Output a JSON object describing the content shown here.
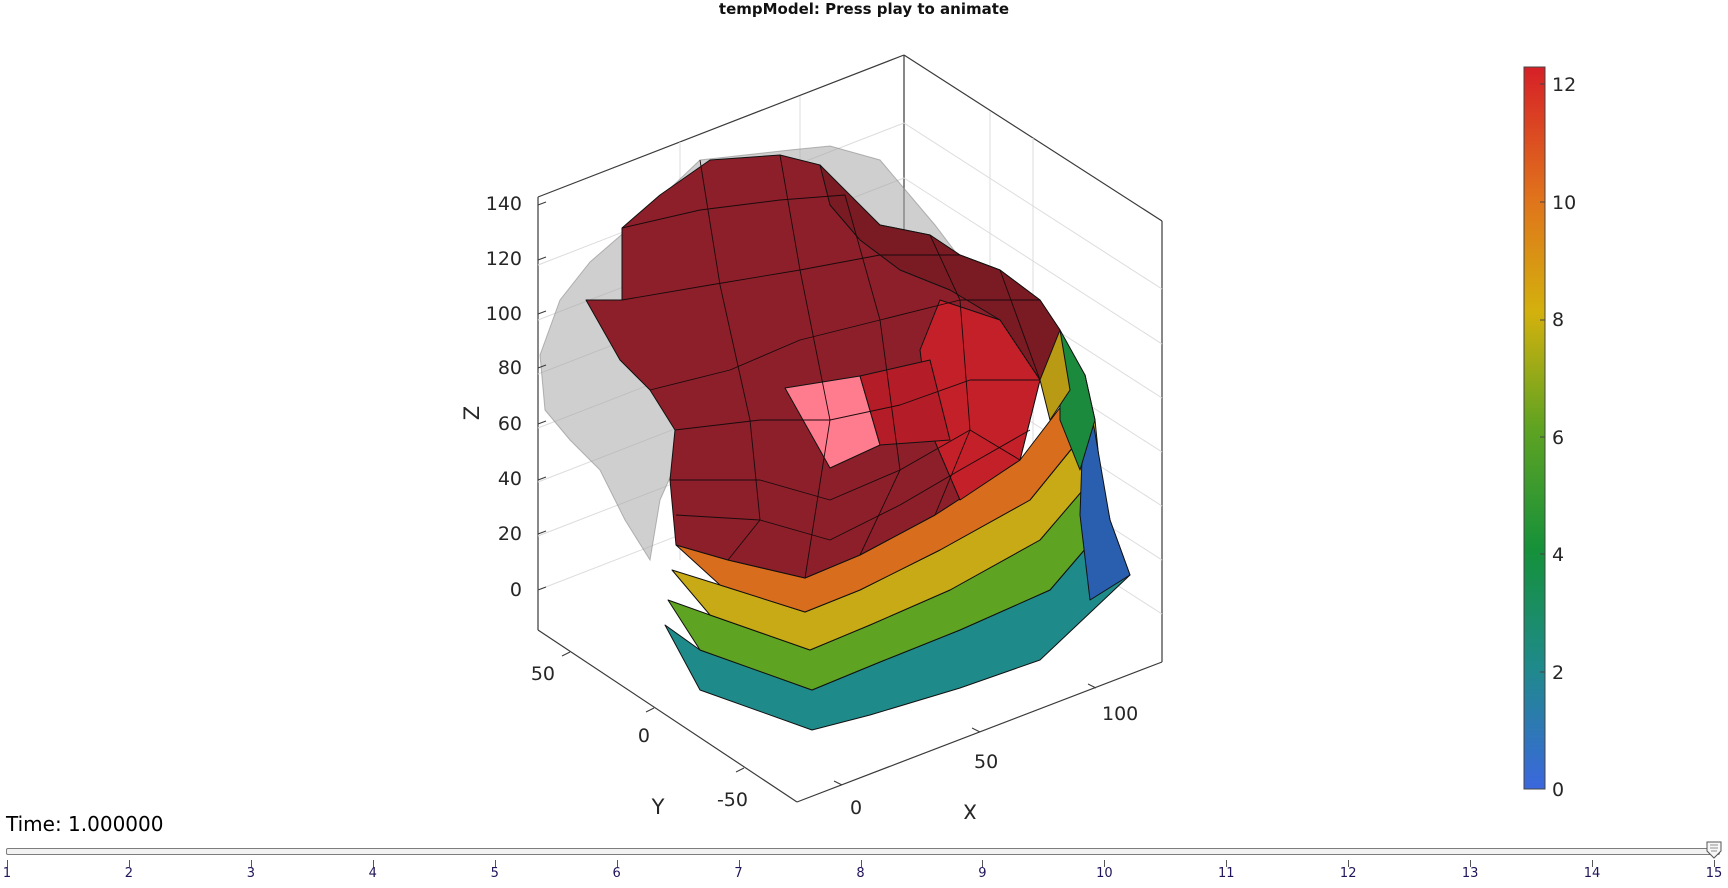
{
  "window": {
    "title": "tempModel: Press play to animate"
  },
  "axes": {
    "z_label": "Z",
    "y_label": "Y",
    "x_label": "X",
    "z_ticks": [
      "140",
      "120",
      "100",
      "80",
      "60",
      "40",
      "20",
      "0"
    ],
    "y_ticks": [
      "50",
      "0",
      "-50"
    ],
    "x_ticks": [
      "100",
      "50",
      "0"
    ]
  },
  "colorbar": {
    "ticks": [
      "12",
      "10",
      "8",
      "6",
      "4",
      "2",
      "0"
    ],
    "range": [
      0,
      12.3
    ],
    "colormap": [
      "#3b67de",
      "#1f8a8a",
      "#15913a",
      "#5fa322",
      "#d3b10d",
      "#e0721c",
      "#d62027"
    ]
  },
  "animation": {
    "time_label": "Time: 1.000000",
    "current_frame": 15,
    "frames": [
      "1",
      "2",
      "3",
      "4",
      "5",
      "6",
      "7",
      "8",
      "9",
      "10",
      "11",
      "12",
      "13",
      "14",
      "15"
    ]
  }
}
